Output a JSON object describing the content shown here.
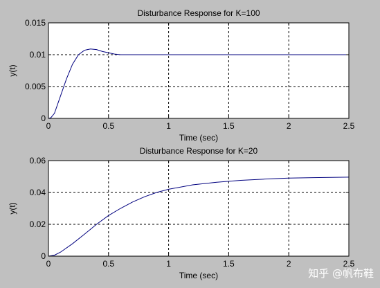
{
  "watermark": "知乎 @帆布鞋",
  "colors": {
    "background": "#c0c0c0",
    "axes": "#ffffff",
    "line": "#00007f",
    "grid": "#000000"
  },
  "chart_data": [
    {
      "type": "line",
      "title": "Disturbance Response for K=100",
      "xlabel": "Time (sec)",
      "ylabel": "y(t)",
      "xlim": [
        0,
        2.5
      ],
      "ylim": [
        0,
        0.015
      ],
      "grid": true,
      "xticks": [
        0,
        0.5,
        1,
        1.5,
        2,
        2.5
      ],
      "xtick_labels": [
        "0",
        "0.5",
        "1",
        "1.5",
        "2",
        "2.5"
      ],
      "yticks": [
        0,
        0.005,
        0.01,
        0.015
      ],
      "ytick_labels": [
        "0",
        "0.005",
        "0.01",
        "0.015"
      ],
      "series": [
        {
          "x": [
            0,
            0.02,
            0.05,
            0.1,
            0.15,
            0.2,
            0.25,
            0.3,
            0.35,
            0.4,
            0.45,
            0.5,
            0.55,
            0.6,
            0.65,
            0.7,
            0.8,
            0.9,
            1.0,
            1.2,
            1.5,
            1.8,
            2.0,
            2.2,
            2.5
          ],
          "y": [
            0,
            0.0001,
            0.0008,
            0.0035,
            0.0062,
            0.0085,
            0.01,
            0.0107,
            0.0109,
            0.0108,
            0.0105,
            0.0103,
            0.0101,
            0.01,
            0.01,
            0.01,
            0.01,
            0.01,
            0.01,
            0.01,
            0.01,
            0.01,
            0.01,
            0.01,
            0.01
          ]
        }
      ]
    },
    {
      "type": "line",
      "title": "Disturbance Response for K=20",
      "xlabel": "Time (sec)",
      "ylabel": "y(t)",
      "xlim": [
        0,
        2.5
      ],
      "ylim": [
        0,
        0.06
      ],
      "grid": true,
      "xticks": [
        0,
        0.5,
        1,
        1.5,
        2,
        2.5
      ],
      "xtick_labels": [
        "0",
        "0.5",
        "1",
        "1.5",
        "2",
        "2.5"
      ],
      "yticks": [
        0,
        0.02,
        0.04,
        0.06
      ],
      "ytick_labels": [
        "0",
        "0.02",
        "0.04",
        "0.06"
      ],
      "series": [
        {
          "x": [
            0,
            0.05,
            0.1,
            0.2,
            0.3,
            0.4,
            0.5,
            0.6,
            0.7,
            0.8,
            0.9,
            1.0,
            1.2,
            1.4,
            1.5,
            1.6,
            1.8,
            2.0,
            2.2,
            2.4,
            2.5
          ],
          "y": [
            0,
            0.0006,
            0.0025,
            0.0078,
            0.0138,
            0.02,
            0.0255,
            0.03,
            0.034,
            0.0373,
            0.04,
            0.042,
            0.0448,
            0.0464,
            0.047,
            0.0476,
            0.0484,
            0.049,
            0.0493,
            0.0495,
            0.0496
          ]
        }
      ]
    }
  ]
}
